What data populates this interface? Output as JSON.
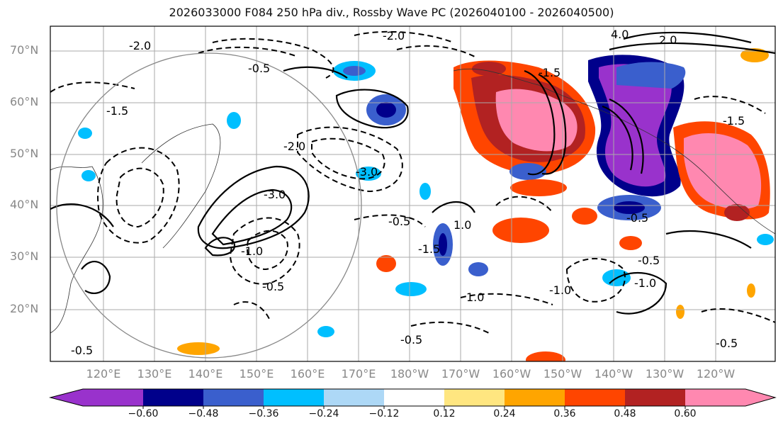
{
  "title": "2026033000 F084 250 hPa div., Rossby Wave PC (2026040100 - 2026040500)",
  "map": {
    "lat_labels": [
      "70°N",
      "60°N",
      "50°N",
      "40°N",
      "30°N",
      "20°N"
    ],
    "lon_labels": [
      "120°E",
      "130°E",
      "140°E",
      "150°E",
      "160°E",
      "170°E",
      "180°W",
      "170°W",
      "160°W",
      "150°W",
      "140°W",
      "130°W",
      "120°W"
    ],
    "contour_labels": [
      "-2.0",
      "-2.0",
      "-0.5",
      "-2.0",
      "-1.5",
      "-3.0",
      "-3.0",
      "-0.5",
      "-1.0",
      "-0.5",
      "1.0",
      "-1.5",
      "-0.5",
      "4.0",
      "-1.5",
      "-1.0",
      "-0.5",
      "-0.5",
      "-1.0",
      "1.0",
      "-0.5",
      "-0.5",
      "2.0",
      "-1.5"
    ]
  },
  "colorbar": {
    "ticks": [
      "−0.60",
      "−0.48",
      "−0.36",
      "−0.24",
      "−0.12",
      "0.12",
      "0.24",
      "0.36",
      "0.48",
      "0.60"
    ],
    "colors": [
      "#9932cc",
      "#00008b",
      "#3a5fcd",
      "#00bfff",
      "#add8f6",
      "#ffffff",
      "#ffe680",
      "#ffa500",
      "#ff4500",
      "#b22222",
      "#ff88b0"
    ]
  }
}
